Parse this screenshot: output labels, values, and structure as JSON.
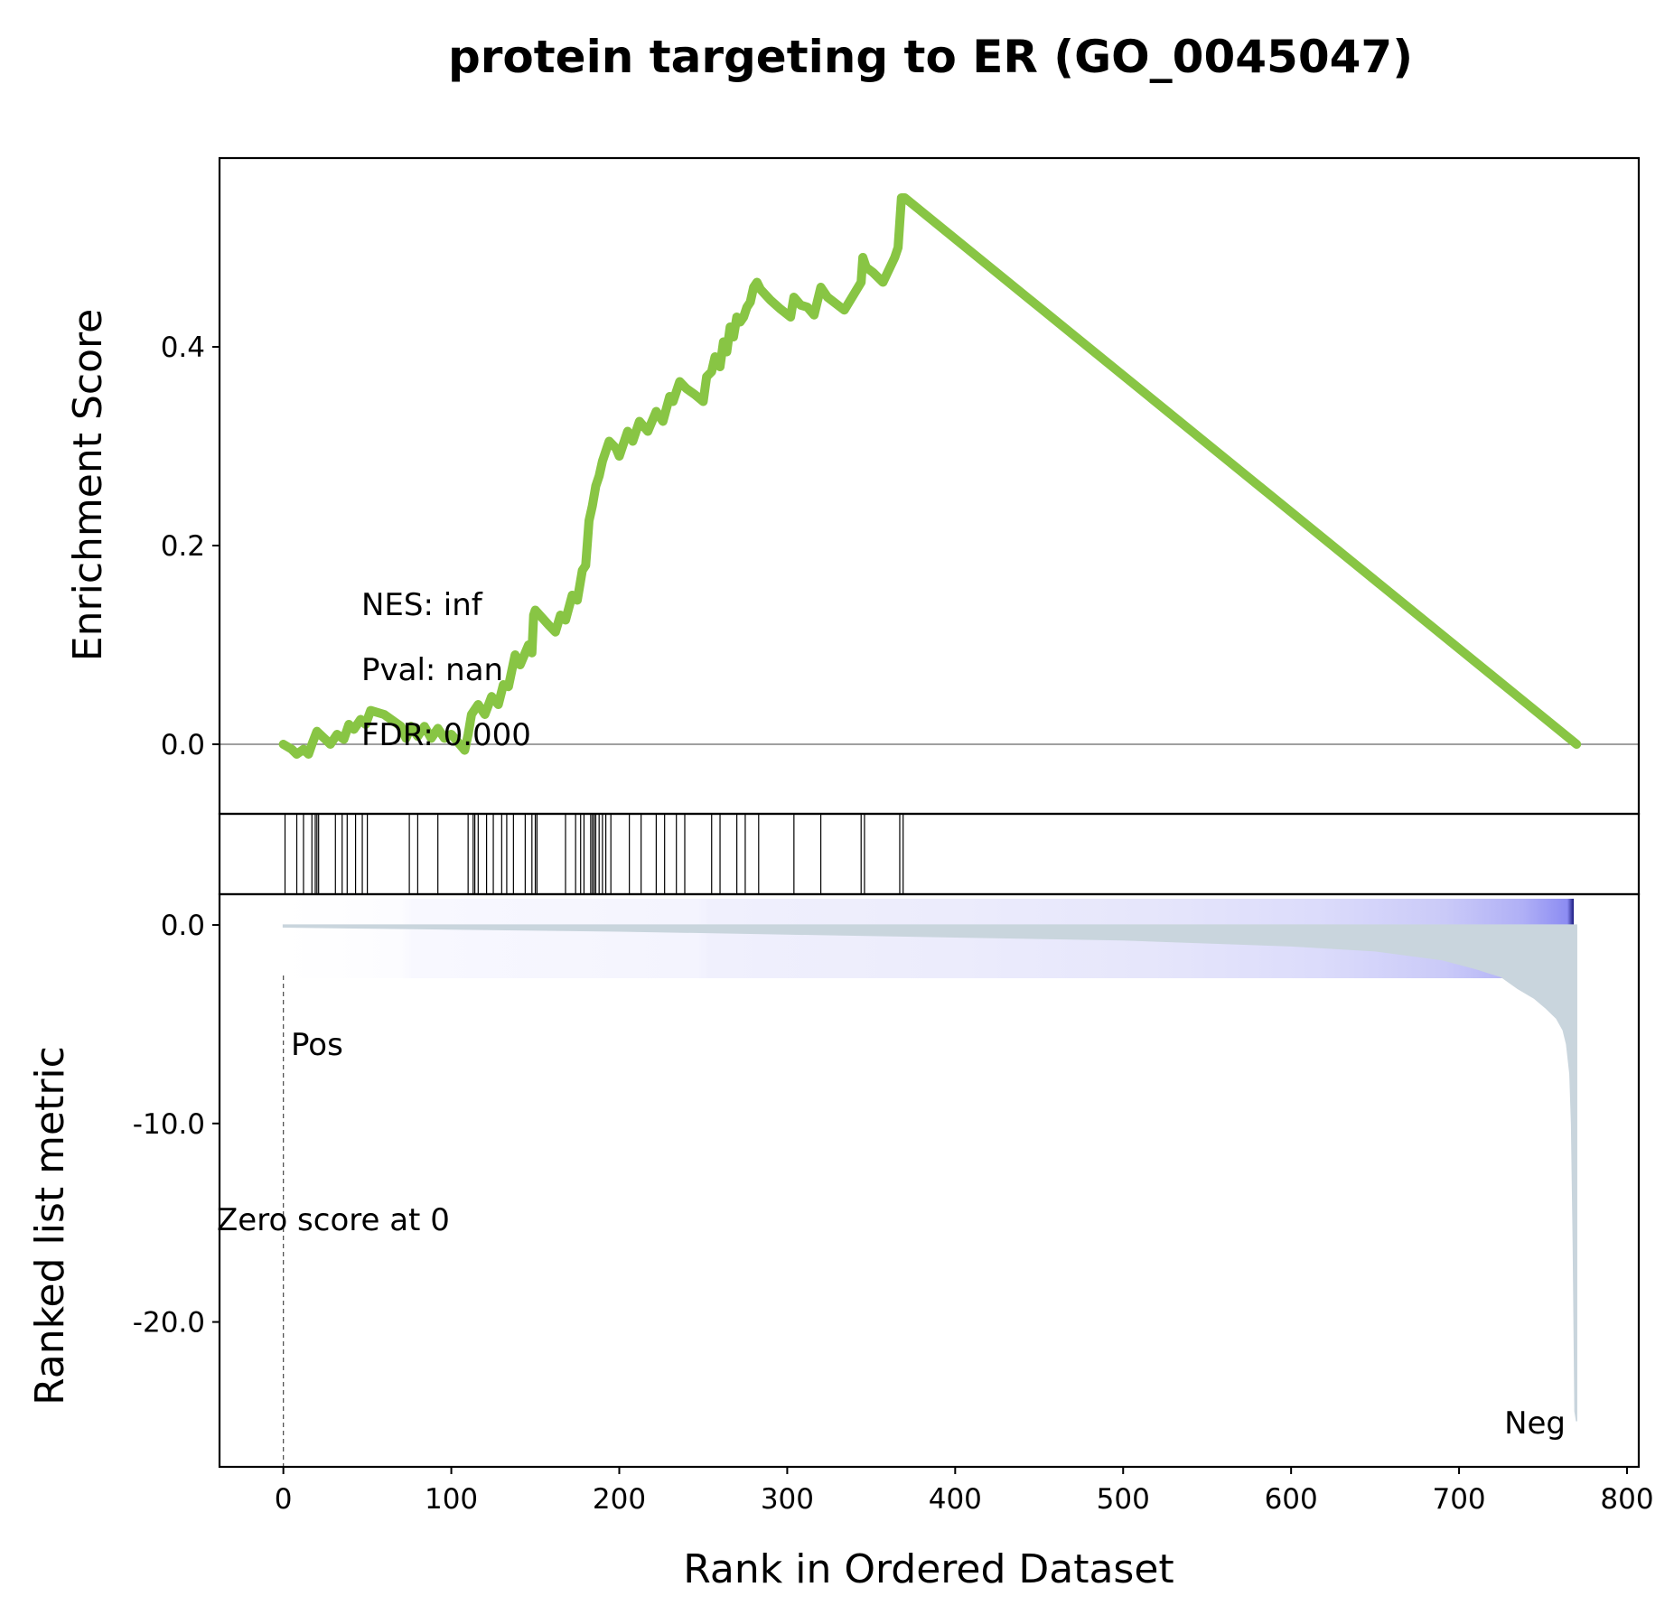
{
  "chart_data": [
    {
      "panel": "enrichment",
      "type": "line",
      "title": "protein targeting to ER (GO_0045047)",
      "ylabel": "Enrichment Score",
      "ylim": [
        -0.07,
        0.59
      ],
      "yticks": [
        "0.0",
        "0.2",
        "0.4"
      ],
      "line_color": "#88c544",
      "x": [
        0,
        5,
        8,
        12,
        15,
        17,
        20,
        25,
        28,
        32,
        36,
        39,
        42,
        46,
        49,
        52,
        60,
        70,
        73,
        76,
        80,
        84,
        88,
        92,
        96,
        100,
        108,
        110,
        112,
        116,
        120,
        124,
        128,
        131,
        134,
        138,
        141,
        146,
        148,
        149,
        150,
        158,
        162,
        165,
        168,
        172,
        175,
        178,
        180,
        182,
        184,
        186,
        188,
        190,
        192,
        194,
        198,
        200,
        205,
        208,
        212,
        217,
        222,
        226,
        230,
        232,
        236,
        240,
        245,
        250,
        252,
        255,
        257,
        260,
        262,
        264,
        266,
        268,
        270,
        272,
        274,
        276,
        278,
        280,
        282,
        284,
        290,
        296,
        302,
        304,
        308,
        312,
        316,
        320,
        324,
        334,
        344,
        345,
        347,
        351,
        357,
        364,
        366,
        368,
        370,
        770
      ],
      "y": [
        0.0,
        -0.005,
        -0.01,
        -0.005,
        -0.01,
        0.0,
        0.013,
        0.005,
        0.0,
        0.01,
        0.005,
        0.02,
        0.015,
        0.025,
        0.02,
        0.034,
        0.03,
        0.018,
        0.006,
        0.018,
        0.008,
        0.018,
        0.006,
        0.016,
        0.006,
        0.01,
        -0.006,
        0.01,
        0.03,
        0.04,
        0.03,
        0.048,
        0.04,
        0.06,
        0.058,
        0.09,
        0.08,
        0.1,
        0.092,
        0.13,
        0.135,
        0.12,
        0.113,
        0.13,
        0.125,
        0.15,
        0.145,
        0.175,
        0.18,
        0.225,
        0.24,
        0.26,
        0.27,
        0.285,
        0.295,
        0.305,
        0.298,
        0.29,
        0.315,
        0.305,
        0.325,
        0.315,
        0.335,
        0.325,
        0.35,
        0.345,
        0.365,
        0.358,
        0.352,
        0.345,
        0.37,
        0.375,
        0.39,
        0.38,
        0.405,
        0.395,
        0.42,
        0.41,
        0.43,
        0.425,
        0.43,
        0.44,
        0.445,
        0.46,
        0.465,
        0.458,
        0.447,
        0.438,
        0.43,
        0.45,
        0.442,
        0.44,
        0.432,
        0.46,
        0.45,
        0.437,
        0.465,
        0.49,
        0.48,
        0.475,
        0.465,
        0.49,
        0.5,
        0.55,
        0.55,
        0.0
      ],
      "annotations": [
        "NES: inf",
        "Pval: nan",
        "FDR: 0.000"
      ]
    },
    {
      "panel": "hits",
      "type": "bar",
      "hit_ranks": [
        1,
        8,
        12,
        17,
        19,
        20,
        21,
        31,
        35,
        38,
        43,
        47,
        50,
        75,
        80,
        92,
        110,
        113,
        114,
        116,
        121,
        125,
        130,
        133,
        137,
        144,
        148,
        150,
        151,
        168,
        174,
        177,
        179,
        183,
        184,
        185,
        186,
        188,
        190,
        192,
        195,
        206,
        213,
        222,
        227,
        234,
        239,
        255,
        260,
        270,
        275,
        283,
        304,
        320,
        344,
        346,
        367,
        369
      ]
    },
    {
      "panel": "ranked-metric",
      "type": "area",
      "ylabel": "Ranked list metric",
      "xlabel": "Rank in Ordered Dataset",
      "xlim": [
        -38,
        807
      ],
      "ylim": [
        -27.3,
        1.55
      ],
      "xticks": [
        "0",
        "100",
        "200",
        "300",
        "400",
        "500",
        "600",
        "700",
        "800"
      ],
      "yticks": [
        "0.0",
        "-10.0",
        "-20.0"
      ],
      "fill_color": "#c9d5dd",
      "x": [
        0,
        100,
        200,
        300,
        400,
        500,
        600,
        650,
        690,
        710,
        725,
        735,
        745,
        752,
        758,
        762,
        764,
        766,
        767,
        768,
        769,
        770
      ],
      "y": [
        -0.1,
        -0.2,
        -0.3,
        -0.45,
        -0.6,
        -0.75,
        -1.05,
        -1.3,
        -1.75,
        -2.2,
        -2.6,
        -3.2,
        -3.7,
        -4.2,
        -4.7,
        -5.3,
        -6.0,
        -7.5,
        -10.0,
        -16.0,
        -24.5,
        -25.0
      ],
      "annotations": {
        "zero_line": "Zero score at 0",
        "pos_label": "Pos",
        "neg_label": "Neg",
        "pos_color": "#ff0000",
        "neg_color": "#0000ff"
      }
    }
  ]
}
